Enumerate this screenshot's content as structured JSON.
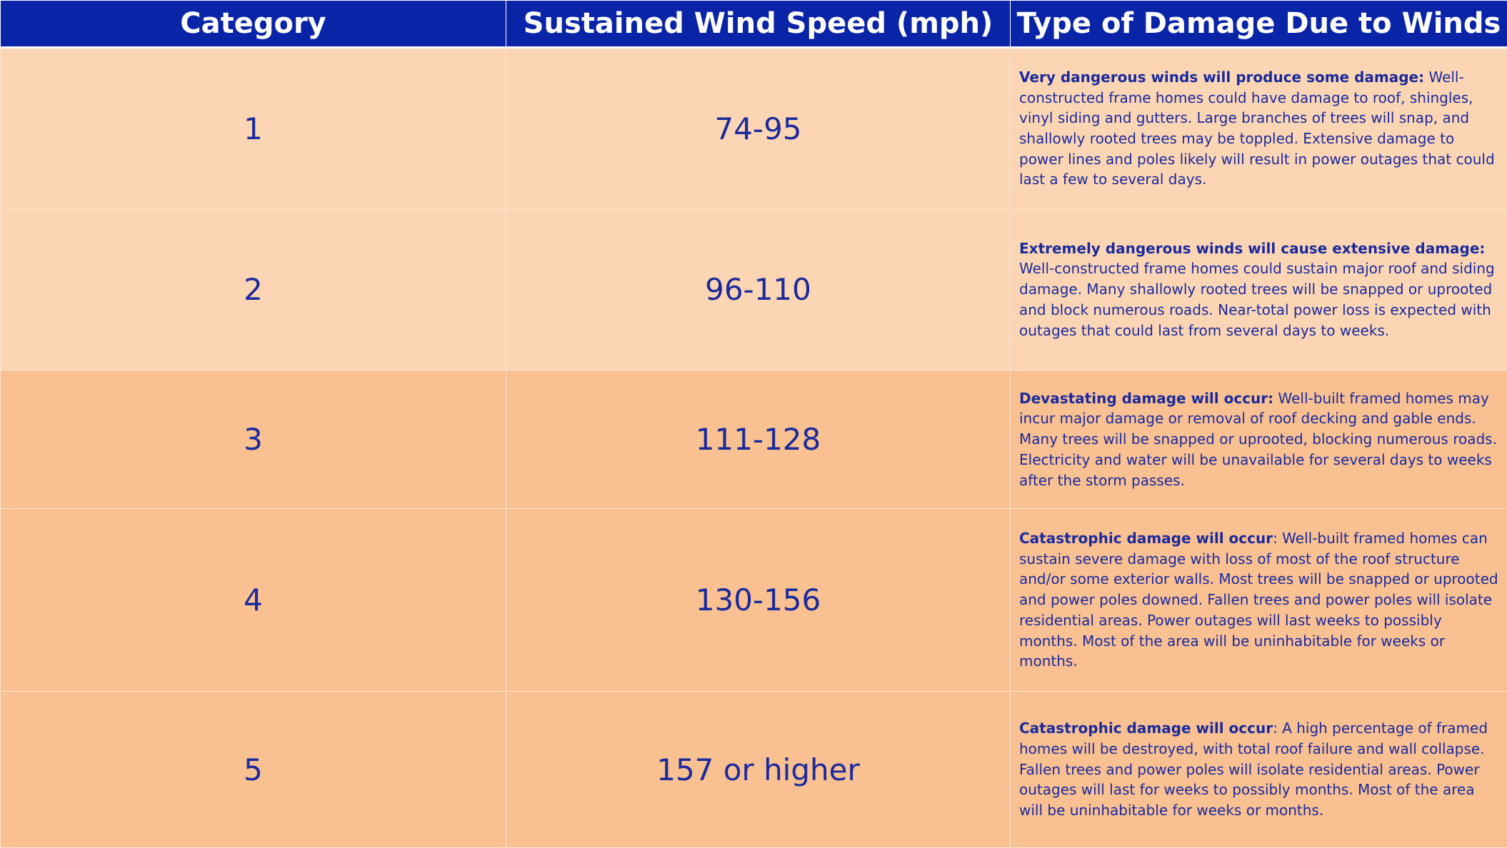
{
  "table": {
    "header": [
      "Category",
      "Sustained Wind Speed (mph)",
      "Type of Damage Due to Winds"
    ],
    "rows": [
      {
        "category": "1",
        "speed": "74-95",
        "lead": "Very dangerous winds will produce some damage:",
        "text": " Well-constructed frame homes could have damage to roof, shingles, vinyl siding and gutters. Large branches of trees will snap, and shallowly rooted trees may be toppled. Extensive damage to power lines and poles likely will result in power outages that could last a few to several days."
      },
      {
        "category": "2",
        "speed": "96-110",
        "lead": "Extremely dangerous winds will cause extensive damage:",
        "text": " Well-constructed frame homes could sustain major roof and siding damage. Many shallowly rooted trees will be snapped or uprooted and block numerous roads. Near-total power loss is expected with outages that could last from several days to weeks."
      },
      {
        "category": "3",
        "speed": "111-128",
        "lead": "Devastating damage will occur:",
        "text": " Well-built framed homes may incur major damage or removal of roof decking and gable ends. Many trees will be snapped or uprooted, blocking numerous roads. Electricity and water will be unavailable for several days to weeks after the storm passes."
      },
      {
        "category": "4",
        "speed": "130-156",
        "lead": "Catastrophic damage will occur",
        "text": ": Well-built framed homes can sustain severe damage with loss of most of the roof structure and/or some exterior walls. Most trees will be snapped or uprooted and power poles downed. Fallen trees and power poles will isolate residential areas. Power outages will last weeks to possibly months. Most of the area will be uninhabitable for weeks or months."
      },
      {
        "category": "5",
        "speed": "157 or higher",
        "lead": "Catastrophic damage will occur",
        "text": ": A high percentage of framed homes will be destroyed, with total roof failure and wall collapse. Fallen trees and power poles will isolate residential areas. Power outages will last for weeks to possibly months. Most of the area will be uninhabitable for weeks or months."
      }
    ]
  }
}
